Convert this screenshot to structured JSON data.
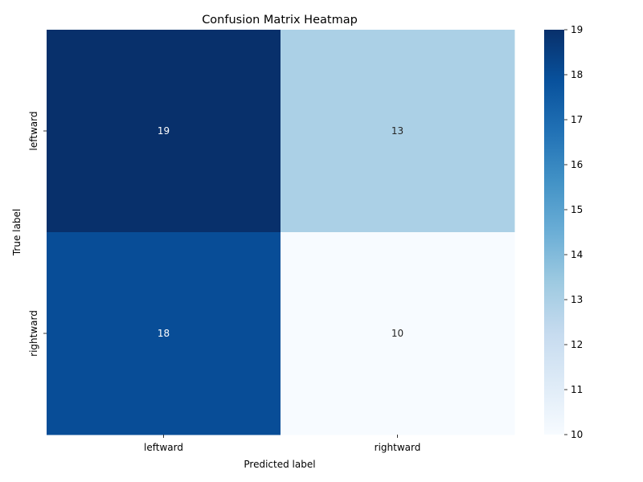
{
  "chart_data": {
    "type": "heatmap",
    "title": "Confusion Matrix Heatmap",
    "xlabel": "Predicted label",
    "ylabel": "True label",
    "x_categories": [
      "leftward",
      "rightward"
    ],
    "y_categories": [
      "leftward",
      "rightward"
    ],
    "values": [
      [
        19,
        13
      ],
      [
        18,
        10
      ]
    ],
    "colormap": "Blues",
    "colorbar": {
      "min": 10,
      "max": 19,
      "ticks": [
        "10",
        "11",
        "12",
        "13",
        "14",
        "15",
        "16",
        "17",
        "18",
        "19"
      ]
    },
    "color_stops": [
      "#f7fbff",
      "#deebf7",
      "#c6dbef",
      "#9ecae1",
      "#6baed6",
      "#4292c6",
      "#2171b5",
      "#08519c",
      "#08306b"
    ]
  }
}
